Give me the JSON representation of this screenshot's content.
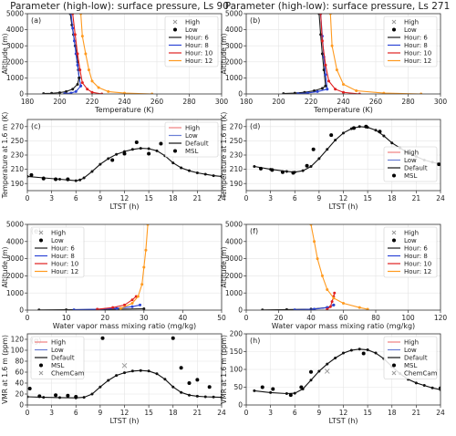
{
  "titles": {
    "left": "Parameter (high-low): surface pressure, Ls 90",
    "right": "Parameter (high-low): surface pressure, Ls 271"
  },
  "colors": {
    "high": "#999999",
    "low": "#000000",
    "hour6": "#1a1a1a",
    "hour8": "#2b44d6",
    "hour10": "#e02020",
    "hour12": "#ff9a1f",
    "high_line": "#f08080",
    "low_line": "#6a7fd6",
    "default_line": "#111111",
    "chemcam": "#9a9a9a"
  },
  "chart_data": [
    {
      "id": "a",
      "type": "line",
      "panel_label": "(a)",
      "xlabel": "Temperature (K)",
      "ylabel": "Altitude (m)",
      "xlim": [
        180,
        300
      ],
      "ylim": [
        0,
        5000
      ],
      "xticks": [
        180,
        200,
        220,
        240,
        260,
        280,
        300
      ],
      "yticks": [
        0,
        1000,
        2000,
        3000,
        4000,
        5000
      ],
      "legend": [
        "High",
        "Low",
        "Hour: 6",
        "Hour: 8",
        "Hour: 10",
        "Hour: 12"
      ],
      "legend_position": "upper-right",
      "series": [
        {
          "name": "Hour: 6",
          "color_key": "hour6",
          "x": [
            212,
            211.5,
            211,
            210.5,
            209.5,
            208.5,
            207.5,
            206.5
          ],
          "y": [
            1000,
            1500,
            2000,
            2500,
            3000,
            3700,
            4300,
            5000
          ]
        },
        {
          "name": "Hour: 8",
          "color_key": "hour8",
          "x": [
            213,
            212,
            211,
            210,
            209,
            208,
            207
          ],
          "y": [
            500,
            1000,
            1800,
            2500,
            3300,
            4100,
            5000
          ]
        },
        {
          "name": "Hour: 10",
          "color_key": "hour10",
          "x": [
            226,
            220,
            217,
            214,
            212.5,
            211,
            209.5,
            208
          ],
          "y": [
            0,
            100,
            300,
            700,
            1500,
            2500,
            3700,
            5000
          ]
        },
        {
          "name": "Hour: 12",
          "color_key": "hour12",
          "x": [
            257,
            240,
            230,
            224,
            220,
            218,
            216,
            214,
            213
          ],
          "y": [
            0,
            50,
            150,
            400,
            800,
            1500,
            2500,
            3600,
            5000
          ]
        },
        {
          "name": "Hour: 6 near-surface",
          "color_key": "hour6",
          "x": [
            190,
            195,
            200,
            204,
            208,
            211,
            212
          ],
          "y": [
            20,
            40,
            80,
            150,
            300,
            600,
            1000
          ]
        },
        {
          "name": "Hour: 8 near-surface",
          "color_key": "hour8",
          "x": [
            203,
            207,
            210,
            213
          ],
          "y": [
            20,
            60,
            150,
            500
          ]
        }
      ]
    },
    {
      "id": "b",
      "type": "line",
      "panel_label": "(b)",
      "xlabel": "Temperature (K)",
      "ylabel": "Altitude (m)",
      "xlim": [
        180,
        300
      ],
      "ylim": [
        0,
        5000
      ],
      "xticks": [
        180,
        200,
        220,
        240,
        260,
        280,
        300
      ],
      "yticks": [
        0,
        1000,
        2000,
        3000,
        4000,
        5000
      ],
      "legend": [
        "High",
        "Low",
        "Hour: 6",
        "Hour: 8",
        "Hour: 10",
        "Hour: 12"
      ],
      "legend_position": "upper-right",
      "series": [
        {
          "name": "Hour: 6",
          "color_key": "hour6",
          "x": [
            229,
            228,
            227,
            226,
            225
          ],
          "y": [
            500,
            1500,
            2500,
            3700,
            5000
          ]
        },
        {
          "name": "Hour: 8",
          "color_key": "hour8",
          "x": [
            230,
            229,
            228,
            227,
            226
          ],
          "y": [
            300,
            1200,
            2300,
            3600,
            5000
          ]
        },
        {
          "name": "Hour: 10",
          "color_key": "hour10",
          "x": [
            250,
            240,
            235,
            231,
            229,
            227,
            226
          ],
          "y": [
            0,
            100,
            300,
            800,
            1800,
            3300,
            5000
          ]
        },
        {
          "name": "Hour: 12",
          "color_key": "hour12",
          "x": [
            288,
            265,
            248,
            240,
            236,
            233,
            232
          ],
          "y": [
            0,
            50,
            200,
            600,
            1500,
            3000,
            5000
          ]
        },
        {
          "name": "Hour: 6 near-surface",
          "color_key": "hour6",
          "x": [
            203,
            210,
            216,
            222,
            227,
            229
          ],
          "y": [
            20,
            50,
            100,
            200,
            350,
            500
          ]
        },
        {
          "name": "Hour: 8 near-surface",
          "color_key": "hour8",
          "x": [
            212,
            218,
            224,
            230
          ],
          "y": [
            20,
            60,
            150,
            300
          ]
        }
      ]
    },
    {
      "id": "c",
      "type": "line",
      "panel_label": "(c)",
      "xlabel": "LTST (h)",
      "ylabel": "Temperature at 1.6 m (K)",
      "xlim": [
        0,
        24
      ],
      "ylim": [
        180,
        280
      ],
      "xticks": [
        0,
        3,
        6,
        9,
        12,
        15,
        18,
        21,
        24
      ],
      "yticks": [
        190,
        210,
        230,
        250,
        270
      ],
      "legend": [
        "High",
        "Low",
        "Default",
        "MSL"
      ],
      "legend_position": "upper-right",
      "series": [
        {
          "name": "Default",
          "color_key": "default_line",
          "x": [
            0,
            2,
            4,
            5,
            6,
            6.5,
            7,
            8,
            9,
            10,
            11,
            12,
            13,
            14,
            15,
            16,
            17,
            18,
            19,
            20,
            21,
            22,
            23,
            24
          ],
          "y": [
            200,
            198,
            196,
            195,
            194,
            195,
            198,
            207,
            217,
            225,
            231,
            235,
            238,
            239.5,
            239,
            236,
            229,
            219,
            212,
            208,
            205,
            203,
            201,
            200
          ]
        },
        {
          "name": "MSL",
          "color_key": "low",
          "marker": "dot",
          "x": [
            0.5,
            2,
            3.5,
            5,
            10.5,
            12,
            13.5,
            15,
            16.5
          ],
          "y": [
            202,
            197,
            196,
            196,
            223,
            232,
            248,
            232,
            246
          ]
        }
      ]
    },
    {
      "id": "d",
      "type": "line",
      "panel_label": "(d)",
      "xlabel": "LTST (h)",
      "ylabel": "Temperature at 1.6 m (K)",
      "xlim": [
        0,
        24
      ],
      "ylim": [
        180,
        280
      ],
      "xticks": [
        0,
        3,
        6,
        9,
        12,
        15,
        18,
        21,
        24
      ],
      "yticks": [
        190,
        210,
        230,
        250,
        270
      ],
      "legend": [
        "High",
        "Low",
        "Default",
        "MSL"
      ],
      "legend_position": "right",
      "series": [
        {
          "name": "Default",
          "color_key": "default_line",
          "x": [
            1,
            3,
            5,
            6,
            7,
            8,
            9,
            10,
            11,
            12,
            13,
            14,
            15,
            16,
            17,
            18,
            19,
            20,
            21,
            22,
            23,
            24
          ],
          "y": [
            214,
            210,
            207,
            206,
            208,
            214,
            225,
            238,
            251,
            261,
            267,
            270,
            269,
            265,
            257,
            247,
            240,
            233,
            228,
            223,
            220,
            217
          ]
        },
        {
          "name": "MSL",
          "color_key": "low",
          "marker": "dot",
          "x": [
            1.8,
            3.2,
            4.5,
            5.8,
            7.5,
            8.3,
            10.5,
            13.3,
            14.8,
            16.5,
            23.8
          ],
          "y": [
            211,
            209,
            206,
            205,
            215,
            238,
            258,
            268,
            270,
            263,
            217
          ]
        }
      ]
    },
    {
      "id": "e",
      "type": "line",
      "panel_label": "(e)",
      "xlabel": "Water vapor mass mixing ratio (mg/kg)",
      "ylabel": "Altitude (m)",
      "xlim": [
        0,
        50
      ],
      "ylim": [
        0,
        5000
      ],
      "xticks": [
        0,
        10,
        20,
        30,
        40,
        50
      ],
      "yticks": [
        0,
        1000,
        2000,
        3000,
        4000,
        5000
      ],
      "legend": [
        "High",
        "Low",
        "Hour: 6",
        "Hour: 8",
        "Hour: 10",
        "Hour: 12"
      ],
      "legend_position": "upper-left",
      "series": [
        {
          "name": "Hour: 6",
          "color_key": "hour6",
          "x": [
            3,
            10,
            20,
            30
          ],
          "y": [
            10,
            20,
            40,
            80
          ]
        },
        {
          "name": "Hour: 8",
          "color_key": "hour8",
          "x": [
            12,
            18,
            23,
            27,
            29
          ],
          "y": [
            20,
            50,
            100,
            200,
            300
          ]
        },
        {
          "name": "Hour: 10",
          "color_key": "hour10",
          "x": [
            18,
            22,
            25,
            27,
            28
          ],
          "y": [
            50,
            150,
            300,
            600,
            800
          ]
        },
        {
          "name": "Hour: 12",
          "color_key": "hour12",
          "x": [
            24,
            27,
            28.5,
            29.5,
            30,
            30.5,
            31
          ],
          "y": [
            100,
            400,
            800,
            1500,
            2500,
            3500,
            5000
          ]
        }
      ]
    },
    {
      "id": "f",
      "type": "line",
      "panel_label": "(f)",
      "xlabel": "Water vapor mass mixing ratio (mg/kg)",
      "ylabel": "Altitude (m)",
      "xlim": [
        0,
        120
      ],
      "ylim": [
        0,
        5000
      ],
      "xticks": [
        0,
        20,
        40,
        60,
        80,
        100,
        120
      ],
      "yticks": [
        0,
        1000,
        2000,
        3000,
        4000,
        5000
      ],
      "legend": [
        "High",
        "Low",
        "Hour: 6",
        "Hour: 8",
        "Hour: 10",
        "Hour: 12"
      ],
      "legend_position": "upper-right",
      "series": [
        {
          "name": "Hour: 6",
          "color_key": "hour6",
          "x": [
            10,
            25,
            40,
            50,
            54
          ],
          "y": [
            10,
            30,
            60,
            150,
            300
          ]
        },
        {
          "name": "Hour: 8",
          "color_key": "hour8",
          "x": [
            30,
            42,
            50,
            54
          ],
          "y": [
            20,
            60,
            150,
            300
          ]
        },
        {
          "name": "Hour: 10",
          "color_key": "hour10",
          "x": [
            50,
            52,
            53,
            54,
            54.5
          ],
          "y": [
            50,
            200,
            500,
            800,
            1000
          ]
        },
        {
          "name": "Hour: 12",
          "color_key": "hour12",
          "x": [
            40,
            42,
            44,
            47,
            50,
            54,
            60,
            70,
            75
          ],
          "y": [
            5000,
            4000,
            3000,
            2000,
            1200,
            700,
            400,
            150,
            50
          ]
        }
      ]
    },
    {
      "id": "g",
      "type": "line",
      "panel_label": "(g)",
      "xlabel": "LTST (h)",
      "ylabel": "VMR at 1.6 m (ppm)",
      "xlim": [
        0,
        24
      ],
      "ylim": [
        0,
        130
      ],
      "xticks": [
        0,
        3,
        6,
        9,
        12,
        15,
        18,
        21,
        24
      ],
      "yticks": [
        0,
        20,
        40,
        60,
        80,
        100,
        120
      ],
      "legend": [
        "High",
        "Low",
        "Default",
        "MSL",
        "ChemCam"
      ],
      "legend_position": "upper-left",
      "series": [
        {
          "name": "Default",
          "color_key": "default_line",
          "x": [
            0,
            2,
            4,
            6,
            7,
            8,
            9,
            10,
            11,
            12,
            13,
            14,
            15,
            16,
            17,
            18,
            19,
            20,
            21,
            22,
            23,
            24
          ],
          "y": [
            15,
            14,
            13.5,
            13,
            14,
            20,
            33,
            45,
            54,
            59,
            62,
            63,
            62,
            57,
            47,
            33,
            23,
            18,
            16,
            15,
            14.5,
            14
          ]
        },
        {
          "name": "MSL",
          "color_key": "low",
          "marker": "dot",
          "x": [
            0.3,
            1.5,
            3.5,
            5,
            6,
            9.3,
            18,
            19,
            20,
            21,
            22.5
          ],
          "y": [
            30,
            16,
            18,
            17,
            15,
            122,
            122,
            68,
            40,
            46,
            33
          ]
        },
        {
          "name": "ChemCam",
          "color_key": "chemcam",
          "marker": "x",
          "x": [
            12
          ],
          "y": [
            72
          ]
        }
      ]
    },
    {
      "id": "h",
      "type": "line",
      "panel_label": "(h)",
      "xlabel": "LTST (h)",
      "ylabel": "VMR at 1.6 m (ppm)",
      "xlim": [
        0,
        24
      ],
      "ylim": [
        0,
        200
      ],
      "xticks": [
        0,
        3,
        6,
        9,
        12,
        15,
        18,
        21,
        24
      ],
      "yticks": [
        0,
        50,
        100,
        150,
        200
      ],
      "legend": [
        "High",
        "Low",
        "Default",
        "MSL",
        "ChemCam"
      ],
      "legend_position": "upper-right",
      "series": [
        {
          "name": "Default",
          "color_key": "default_line",
          "x": [
            1,
            3,
            5,
            6,
            7,
            8,
            9,
            10,
            11,
            12,
            13,
            14,
            15,
            16,
            17,
            18,
            19,
            20,
            21,
            22,
            23,
            24
          ],
          "y": [
            40,
            35,
            32,
            33,
            45,
            70,
            95,
            115,
            132,
            146,
            154,
            157,
            155,
            146,
            130,
            108,
            88,
            72,
            62,
            55,
            48,
            43
          ]
        },
        {
          "name": "MSL",
          "color_key": "low",
          "marker": "dot",
          "x": [
            2,
            3.3,
            5.5,
            6.8,
            8,
            14.5,
            24
          ],
          "y": [
            50,
            45,
            28,
            50,
            93,
            145,
            47
          ]
        },
        {
          "name": "ChemCam",
          "color_key": "chemcam",
          "marker": "x",
          "x": [
            10
          ],
          "y": [
            95
          ]
        }
      ]
    }
  ]
}
